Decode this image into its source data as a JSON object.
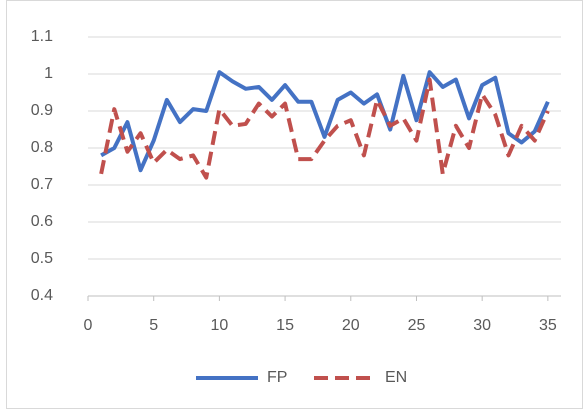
{
  "chart_data": {
    "type": "line",
    "x": [
      1,
      2,
      3,
      4,
      5,
      6,
      7,
      8,
      9,
      10,
      11,
      12,
      13,
      14,
      15,
      16,
      17,
      18,
      19,
      20,
      21,
      22,
      23,
      24,
      25,
      26,
      27,
      28,
      29,
      30,
      31,
      32,
      33,
      34,
      35
    ],
    "series": [
      {
        "name": "FP",
        "color": "#4472c4",
        "dashed": false,
        "values": [
          0.78,
          0.8,
          0.87,
          0.74,
          0.82,
          0.93,
          0.87,
          0.905,
          0.9,
          1.005,
          0.98,
          0.96,
          0.965,
          0.93,
          0.97,
          0.925,
          0.925,
          0.83,
          0.93,
          0.95,
          0.92,
          0.945,
          0.85,
          0.995,
          0.875,
          1.005,
          0.965,
          0.985,
          0.88,
          0.97,
          0.99,
          0.84,
          0.815,
          0.845,
          0.925
        ]
      },
      {
        "name": "EN",
        "color": "#c0504d",
        "dashed": true,
        "values": [
          0.73,
          0.905,
          0.79,
          0.84,
          0.76,
          0.795,
          0.77,
          0.78,
          0.72,
          0.905,
          0.86,
          0.865,
          0.92,
          0.885,
          0.92,
          0.77,
          0.77,
          0.82,
          0.86,
          0.875,
          0.78,
          0.93,
          0.86,
          0.88,
          0.82,
          0.985,
          0.73,
          0.86,
          0.8,
          0.945,
          0.89,
          0.78,
          0.86,
          0.82,
          0.9
        ]
      }
    ],
    "xlim": [
      0,
      36
    ],
    "xticks": [
      0,
      5,
      10,
      15,
      20,
      25,
      30,
      35
    ],
    "ylim": [
      0.4,
      1.1
    ],
    "yticks": [
      0.4,
      0.5,
      0.6,
      0.7,
      0.8,
      0.9,
      1,
      1.1
    ],
    "grid": true,
    "legend": "bottom"
  }
}
